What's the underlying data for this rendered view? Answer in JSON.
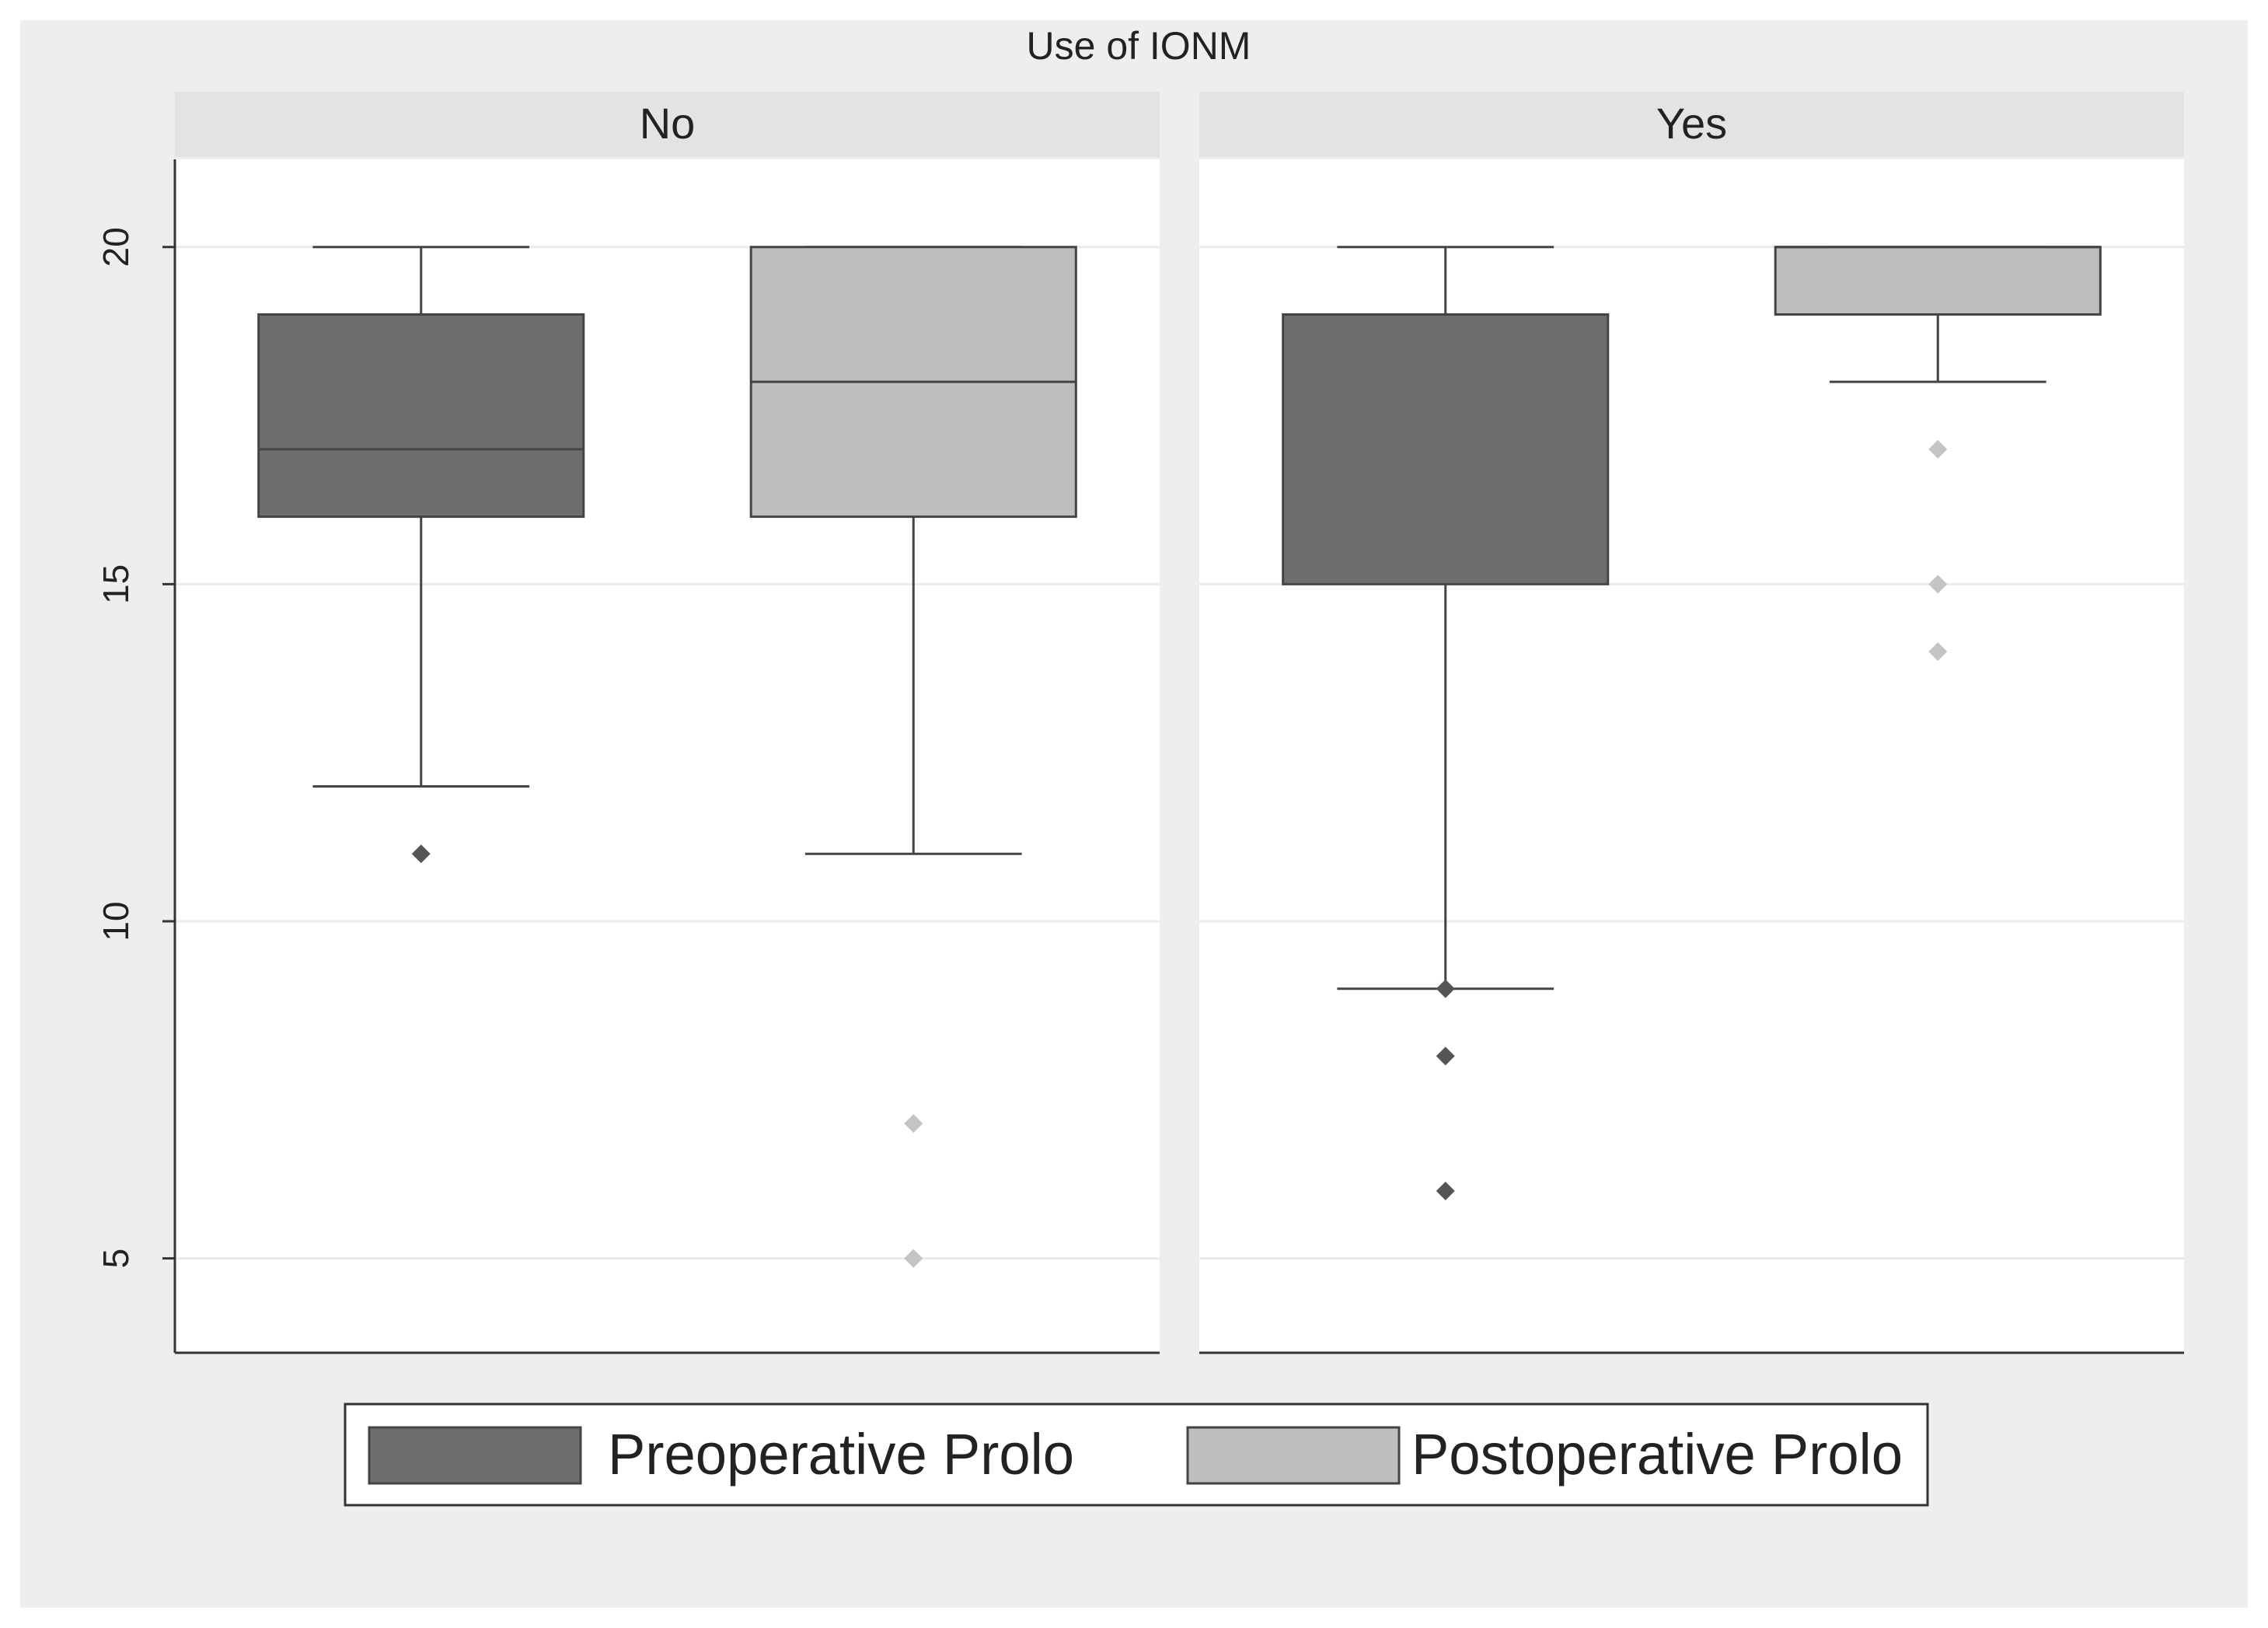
{
  "chart_data": {
    "type": "box",
    "title": "Use of IONM",
    "ylim": [
      3.6,
      21.3
    ],
    "y_ticks": [
      5,
      10,
      15,
      20
    ],
    "grid": true,
    "legend_position": "bottom",
    "series": [
      {
        "name": "Preoperative Prolo",
        "color": "#6e6e6e"
      },
      {
        "name": "Postoperative Prolo",
        "color": "#bebebe"
      }
    ],
    "panels": [
      {
        "label": "No",
        "boxes": [
          {
            "series": "Preoperative Prolo",
            "whisker_low": 12,
            "q1": 16,
            "median": 17,
            "q3": 19,
            "whisker_high": 20,
            "outliers": [
              11
            ]
          },
          {
            "series": "Postoperative Prolo",
            "whisker_low": 11,
            "q1": 16,
            "median": 18,
            "q3": 20,
            "whisker_high": 20,
            "outliers": [
              7,
              5
            ]
          }
        ]
      },
      {
        "label": "Yes",
        "boxes": [
          {
            "series": "Preoperative Prolo",
            "whisker_low": 9,
            "q1": 15,
            "median": 19,
            "q3": 19,
            "whisker_high": 20,
            "outliers": [
              9,
              8,
              6
            ]
          },
          {
            "series": "Postoperative Prolo",
            "whisker_low": 18,
            "q1": 19,
            "median": 20,
            "q3": 20,
            "whisker_high": 20,
            "outliers": [
              17,
              15,
              14
            ]
          }
        ]
      }
    ]
  }
}
